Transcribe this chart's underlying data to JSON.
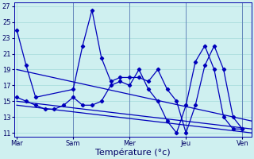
{
  "background_color": "#cff0f0",
  "grid_color": "#aadddd",
  "line_color": "#0000bb",
  "ylim_min": 10.5,
  "ylim_max": 27.5,
  "yticks": [
    11,
    13,
    15,
    17,
    19,
    21,
    23,
    25,
    27
  ],
  "xlabel": "Température (°c)",
  "xlabel_fontsize": 8,
  "tick_fontsize": 6,
  "x_tick_labels": [
    "Mar",
    "Sam",
    "Mer",
    "Jeu",
    "Ven"
  ],
  "x_tick_positions": [
    0,
    6,
    12,
    18,
    24
  ],
  "xlim_min": -0.3,
  "xlim_max": 25.0,
  "line1_x": [
    0,
    1,
    2,
    6,
    7,
    8,
    9,
    10,
    11,
    12,
    13,
    14,
    15,
    16,
    17,
    18,
    19,
    20,
    21,
    22,
    23,
    24
  ],
  "line1_y": [
    24.0,
    19.5,
    15.5,
    16.5,
    22.0,
    26.5,
    20.5,
    17.5,
    18.0,
    18.0,
    18.0,
    17.5,
    19.0,
    16.5,
    15.0,
    11.0,
    14.5,
    19.5,
    22.0,
    19.0,
    13.0,
    11.5
  ],
  "line2_x": [
    0,
    1,
    2,
    3,
    4,
    5,
    6,
    7,
    8,
    9,
    10,
    11,
    12,
    13,
    14,
    15,
    16,
    17,
    18,
    19,
    20,
    21,
    22,
    23,
    24
  ],
  "line2_y": [
    15.5,
    15.0,
    14.5,
    14.0,
    14.0,
    14.5,
    15.5,
    14.5,
    14.5,
    15.0,
    17.0,
    17.5,
    17.0,
    19.0,
    16.5,
    15.0,
    12.5,
    11.0,
    14.5,
    20.0,
    22.0,
    19.0,
    13.0,
    11.5,
    11.5
  ],
  "trend1_y0": 19.0,
  "trend1_y1": 12.5,
  "trend2_y0": 15.0,
  "trend2_y1": 11.5,
  "trend3_y0": 14.5,
  "trend3_y1": 11.0,
  "vline_positions": [
    6,
    12,
    18,
    24
  ]
}
